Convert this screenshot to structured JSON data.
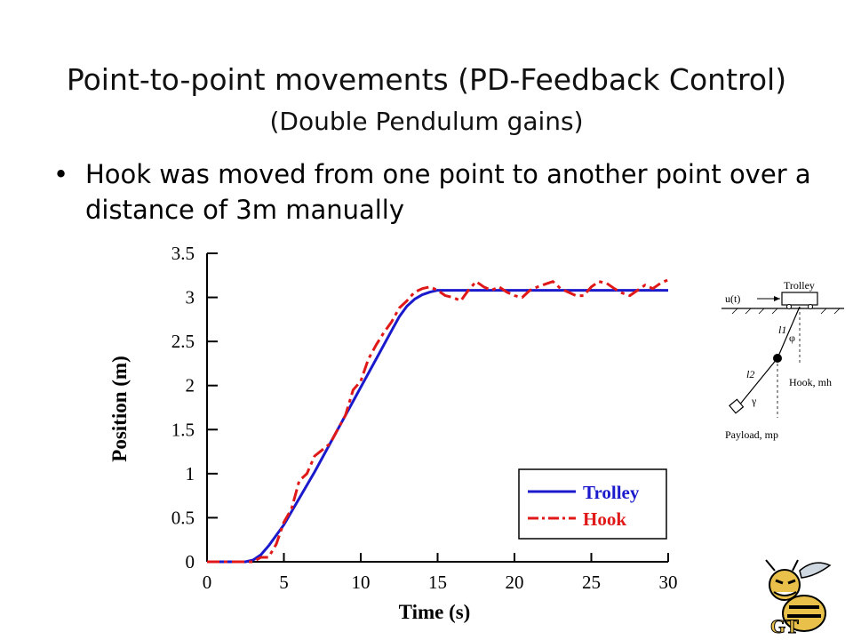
{
  "slide": {
    "title": "Point-to-point movements (PD-Feedback Control)",
    "subtitle": "(Double Pendulum gains)",
    "bullet_marker": "•",
    "bullet": "Hook was moved from one point to another point over a distance of 3m manually"
  },
  "diagram": {
    "input_label": "u(t)",
    "trolley_label": "Trolley",
    "l1_label": "l1",
    "phi_label": "φ",
    "l2_label": "l2",
    "hook_label": "Hook, mh",
    "gamma_label": "γ",
    "payload_label": "Payload, mp"
  },
  "colors": {
    "trolley": "#1a1acc",
    "hook": "#e01818",
    "text": "#000000"
  },
  "logo": {
    "text": "GT",
    "icon": "yellow-jacket-logo"
  },
  "chart_data": {
    "type": "line",
    "title": "",
    "xlabel": "Time (s)",
    "ylabel": "Position (m)",
    "xlim": [
      0,
      30
    ],
    "ylim": [
      0,
      3.5
    ],
    "xticks": [
      0,
      5,
      10,
      15,
      20,
      25,
      30
    ],
    "yticks": [
      0,
      0.5,
      1,
      1.5,
      2,
      2.5,
      3,
      3.5
    ],
    "ytick_labels": [
      "0",
      "0.5",
      "1",
      "1.5",
      "2",
      "2.5",
      "3",
      "3.5"
    ],
    "legend_position": "bottom-right",
    "grid": false,
    "series": [
      {
        "name": "Trolley",
        "color": "#1a1acc",
        "style": "solid",
        "x": [
          0,
          2.5,
          3,
          3.5,
          4,
          5,
          6,
          7,
          8,
          9,
          10,
          11,
          12,
          12.5,
          13,
          13.5,
          14,
          14.5,
          15,
          16,
          18,
          20,
          22,
          24,
          26,
          28,
          30
        ],
        "y": [
          0,
          0,
          0.02,
          0.08,
          0.18,
          0.42,
          0.72,
          1.02,
          1.34,
          1.66,
          1.98,
          2.3,
          2.62,
          2.78,
          2.9,
          2.98,
          3.03,
          3.06,
          3.08,
          3.08,
          3.08,
          3.08,
          3.08,
          3.08,
          3.08,
          3.08,
          3.08
        ]
      },
      {
        "name": "Hook",
        "color": "#e01818",
        "style": "dashdot",
        "x": [
          0,
          2,
          3,
          3.5,
          4,
          4.5,
          5,
          5.5,
          6,
          6.5,
          7,
          7.5,
          8,
          8.5,
          9,
          9.5,
          10,
          10.5,
          11,
          11.5,
          12,
          12.5,
          13,
          13.5,
          14,
          14.5,
          15,
          15.5,
          16,
          16.5,
          17,
          17.5,
          18,
          18.5,
          19,
          19.5,
          20,
          20.5,
          21,
          21.5,
          22,
          22.5,
          23,
          23.5,
          24,
          24.5,
          25,
          25.5,
          26,
          26.5,
          27,
          27.5,
          28,
          28.5,
          29,
          29.5,
          30
        ],
        "y": [
          0,
          0,
          0,
          0.05,
          0.05,
          0.2,
          0.45,
          0.6,
          0.92,
          1.0,
          1.2,
          1.27,
          1.34,
          1.5,
          1.66,
          1.95,
          2.05,
          2.3,
          2.46,
          2.6,
          2.72,
          2.88,
          2.96,
          3.06,
          3.1,
          3.12,
          3.08,
          3.02,
          3.0,
          2.96,
          3.08,
          3.18,
          3.12,
          3.08,
          3.12,
          3.06,
          3.02,
          3.0,
          3.08,
          3.12,
          3.15,
          3.18,
          3.1,
          3.06,
          3.02,
          3.02,
          3.12,
          3.18,
          3.16,
          3.1,
          3.05,
          3.02,
          3.08,
          3.14,
          3.1,
          3.16,
          3.2
        ]
      }
    ]
  }
}
